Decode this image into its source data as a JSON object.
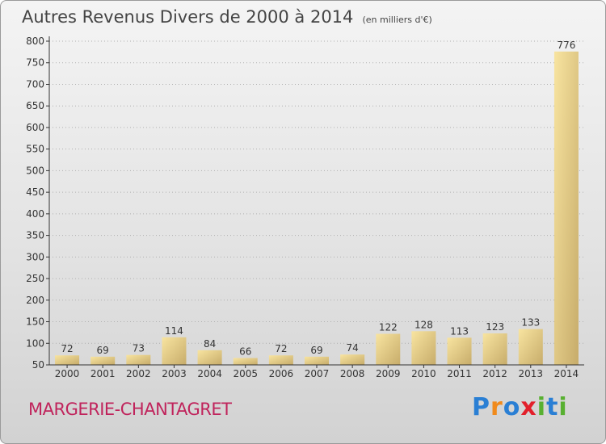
{
  "title": "Autres Revenus Divers de 2000 à 2014",
  "subtitle": "(en milliers d'€)",
  "commune": "MARGERIE-CHANTAGRET",
  "logo": {
    "text": "Proxiti",
    "letters": [
      {
        "ch": "P",
        "color": "#2a7fd4"
      },
      {
        "ch": "r",
        "color": "#f08a1c"
      },
      {
        "ch": "o",
        "color": "#2a7fd4"
      },
      {
        "ch": "x",
        "color": "#e2202b"
      },
      {
        "ch": "i",
        "color": "#58b031"
      },
      {
        "ch": "t",
        "color": "#2a7fd4"
      },
      {
        "ch": "i",
        "color": "#58b031"
      }
    ]
  },
  "colors": {
    "bar_light": "#f8e4a0",
    "bar_dark": "#c7ac6a",
    "axis": "#333333",
    "grid": "#b0b0b0",
    "text": "#333333"
  },
  "chart_data": {
    "type": "bar",
    "title": "Autres Revenus Divers de 2000 à 2014",
    "subtitle": "(en milliers d'€)",
    "categories": [
      "2000",
      "2001",
      "2002",
      "2003",
      "2004",
      "2005",
      "2006",
      "2007",
      "2008",
      "2009",
      "2010",
      "2011",
      "2012",
      "2013",
      "2014"
    ],
    "values": [
      72,
      69,
      73,
      114,
      84,
      66,
      72,
      69,
      74,
      122,
      128,
      113,
      123,
      133,
      776
    ],
    "ylim": [
      50,
      800
    ],
    "yticks": [
      50,
      100,
      150,
      200,
      250,
      300,
      350,
      400,
      450,
      500,
      550,
      600,
      650,
      700,
      750,
      800
    ],
    "grid": true,
    "data_labels": true
  }
}
